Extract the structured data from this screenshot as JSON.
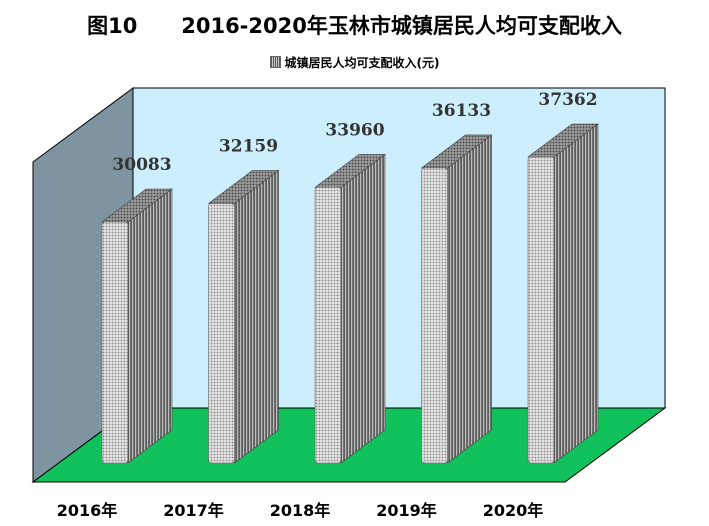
{
  "title": "图10      2016-2020年玉林市城镇居民人均可支配收入",
  "legend": {
    "label": "城镇居民人均可支配收入(元)"
  },
  "colors": {
    "back_wall": "#cdeefc",
    "side_wall": "#7e95a1",
    "floor": "#11c15b",
    "bar_light": "#d9d9d9",
    "bar_dark": "#6f6f6f"
  },
  "chart_data": {
    "type": "bar",
    "title": "图10      2016-2020年玉林市城镇居民人均可支配收入",
    "categories": [
      "2016年",
      "2017年",
      "2018年",
      "2019年",
      "2020年"
    ],
    "series": [
      {
        "name": "城镇居民人均可支配收入(元)",
        "values": [
          30083,
          32159,
          33960,
          36133,
          37362
        ]
      }
    ],
    "legend": "top",
    "grid": false,
    "style": "3d"
  }
}
